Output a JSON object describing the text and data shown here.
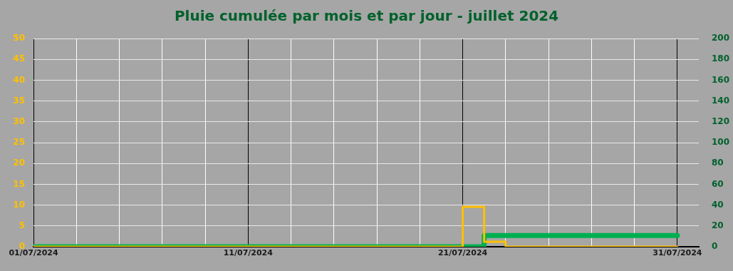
{
  "chart_data": {
    "type": "step",
    "title": "Pluie cumulée par mois et par jour - juillet 2024",
    "x": [
      "2024-07-01",
      "2024-07-02",
      "2024-07-03",
      "2024-07-04",
      "2024-07-05",
      "2024-07-06",
      "2024-07-07",
      "2024-07-08",
      "2024-07-09",
      "2024-07-10",
      "2024-07-11",
      "2024-07-12",
      "2024-07-13",
      "2024-07-14",
      "2024-07-15",
      "2024-07-16",
      "2024-07-17",
      "2024-07-18",
      "2024-07-19",
      "2024-07-20",
      "2024-07-21",
      "2024-07-22",
      "2024-07-23",
      "2024-07-24",
      "2024-07-25",
      "2024-07-26",
      "2024-07-27",
      "2024-07-28",
      "2024-07-29",
      "2024-07-30",
      "2024-07-31"
    ],
    "series": [
      {
        "color": "#ffc000",
        "values": [
          0,
          0,
          0,
          0,
          0,
          0,
          0,
          0,
          0,
          0,
          0,
          0,
          0,
          0,
          0,
          0,
          0,
          0,
          0,
          0,
          9.6,
          1.2,
          0,
          0,
          0,
          0,
          0,
          0,
          0,
          0,
          0
        ]
      },
      {
        "color": "#00b050",
        "axis": "y2",
        "values": [
          0,
          0,
          0,
          0,
          0,
          0,
          0,
          0,
          0,
          0,
          0,
          0,
          0,
          0,
          0,
          0,
          0,
          0,
          0,
          0,
          0,
          10.8,
          10.8,
          10.8,
          10.8,
          10.8,
          10.8,
          10.8,
          10.8,
          10.8,
          10.8
        ]
      }
    ],
    "xlim": [
      "2024-07-01",
      "2024-08-01"
    ],
    "xticks": [
      {
        "value": "2024-07-01",
        "label": "01/07/2024"
      },
      {
        "value": "2024-07-03",
        "label": null
      },
      {
        "value": "2024-07-05",
        "label": null
      },
      {
        "value": "2024-07-07",
        "label": null
      },
      {
        "value": "2024-07-09",
        "label": null
      },
      {
        "value": "2024-07-11",
        "label": "11/07/2024"
      },
      {
        "value": "2024-07-13",
        "label": null
      },
      {
        "value": "2024-07-15",
        "label": null
      },
      {
        "value": "2024-07-17",
        "label": null
      },
      {
        "value": "2024-07-19",
        "label": null
      },
      {
        "value": "2024-07-21",
        "label": "21/07/2024"
      },
      {
        "value": "2024-07-23",
        "label": null
      },
      {
        "value": "2024-07-25",
        "label": null
      },
      {
        "value": "2024-07-27",
        "label": null
      },
      {
        "value": "2024-07-29",
        "label": null
      },
      {
        "value": "2024-07-31",
        "label": "31/07/2024"
      }
    ],
    "ylim": [
      0,
      50
    ],
    "yticks": [
      0,
      5,
      10,
      15,
      20,
      25,
      30,
      35,
      40,
      45,
      50
    ],
    "y2lim": [
      0,
      200
    ],
    "y2ticks": [
      0,
      20,
      40,
      60,
      80,
      100,
      120,
      140,
      160,
      180,
      200
    ],
    "grid": true,
    "legend": false
  }
}
